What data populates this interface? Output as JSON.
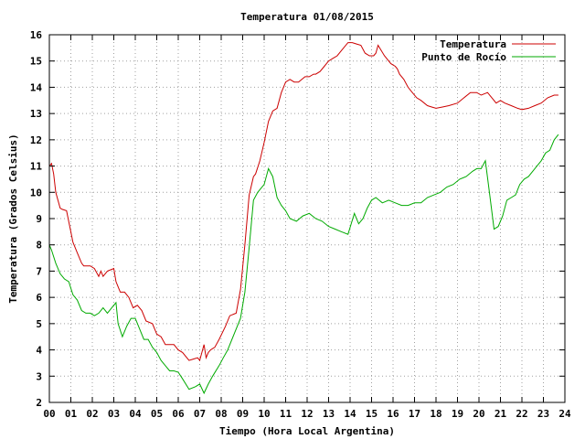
{
  "chart_data": {
    "type": "line",
    "title": "Temperatura 01/08/2015",
    "xlabel": "Tiempo (Hora Local Argentina)",
    "ylabel": "Temperatura (Grados Celsius)",
    "xlim": [
      0,
      24
    ],
    "ylim": [
      2,
      16
    ],
    "x_ticks": [
      0,
      1,
      2,
      3,
      4,
      5,
      6,
      7,
      8,
      9,
      10,
      11,
      12,
      13,
      14,
      15,
      16,
      17,
      18,
      19,
      20,
      21,
      22,
      23,
      24
    ],
    "x_tick_labels": [
      "00",
      "01",
      "02",
      "03",
      "04",
      "05",
      "06",
      "07",
      "08",
      "09",
      "10",
      "11",
      "12",
      "13",
      "14",
      "15",
      "16",
      "17",
      "18",
      "19",
      "20",
      "21",
      "22",
      "23",
      "24"
    ],
    "y_ticks": [
      2,
      3,
      4,
      5,
      6,
      7,
      8,
      9,
      10,
      11,
      12,
      13,
      14,
      15,
      16
    ],
    "y_tick_labels": [
      "2",
      "3",
      "4",
      "5",
      "6",
      "7",
      "8",
      "9",
      "10",
      "11",
      "12",
      "13",
      "14",
      "15",
      "16"
    ],
    "grid": true,
    "legend_position": "top-right",
    "series": [
      {
        "name": "Temperatura",
        "color": "#cc0000",
        "x": [
          0.0,
          0.1,
          0.2,
          0.3,
          0.5,
          0.6,
          0.8,
          1.0,
          1.1,
          1.3,
          1.5,
          1.6,
          1.9,
          2.1,
          2.3,
          2.4,
          2.5,
          2.7,
          3.0,
          3.1,
          3.3,
          3.5,
          3.7,
          3.9,
          4.1,
          4.3,
          4.5,
          4.8,
          5.0,
          5.2,
          5.4,
          5.6,
          5.8,
          6.0,
          6.2,
          6.5,
          6.7,
          6.9,
          7.0,
          7.2,
          7.3,
          7.4,
          7.5,
          7.7,
          7.9,
          8.2,
          8.4,
          8.7,
          8.9,
          9.1,
          9.3,
          9.5,
          9.6,
          9.8,
          10.0,
          10.2,
          10.4,
          10.6,
          10.8,
          11.0,
          11.2,
          11.4,
          11.6,
          11.9,
          12.1,
          12.3,
          12.4,
          12.6,
          12.8,
          13.0,
          13.2,
          13.4,
          13.6,
          13.9,
          14.1,
          14.3,
          14.5,
          14.7,
          14.9,
          15.1,
          15.2,
          15.3,
          15.6,
          15.9,
          16.1,
          16.2,
          16.3,
          16.5,
          16.7,
          16.9,
          17.1,
          17.3,
          17.6,
          17.8,
          18.0,
          18.3,
          18.6,
          19.0,
          19.3,
          19.6,
          19.9,
          20.1,
          20.4,
          20.6,
          20.8,
          21.0,
          21.2,
          21.5,
          21.8,
          22.0,
          22.3,
          22.6,
          22.9,
          23.2,
          23.5,
          23.7
        ],
        "values": [
          11.0,
          11.1,
          10.7,
          10.0,
          9.4,
          9.35,
          9.3,
          8.5,
          8.1,
          7.7,
          7.3,
          7.2,
          7.2,
          7.1,
          6.8,
          7.0,
          6.8,
          7.0,
          7.1,
          6.6,
          6.2,
          6.2,
          6.0,
          5.6,
          5.7,
          5.5,
          5.1,
          5.0,
          4.6,
          4.5,
          4.2,
          4.2,
          4.2,
          4.0,
          3.9,
          3.6,
          3.65,
          3.7,
          3.6,
          4.2,
          3.7,
          3.9,
          4.0,
          4.1,
          4.4,
          4.9,
          5.3,
          5.4,
          6.3,
          8.0,
          9.9,
          10.6,
          10.7,
          11.2,
          11.9,
          12.7,
          13.1,
          13.2,
          13.8,
          14.2,
          14.3,
          14.2,
          14.2,
          14.4,
          14.4,
          14.5,
          14.5,
          14.6,
          14.8,
          15.0,
          15.1,
          15.2,
          15.4,
          15.7,
          15.7,
          15.65,
          15.6,
          15.3,
          15.2,
          15.2,
          15.3,
          15.6,
          15.2,
          14.9,
          14.8,
          14.7,
          14.5,
          14.3,
          14.0,
          13.8,
          13.6,
          13.5,
          13.3,
          13.25,
          13.2,
          13.25,
          13.3,
          13.4,
          13.6,
          13.8,
          13.8,
          13.7,
          13.8,
          13.6,
          13.4,
          13.5,
          13.4,
          13.3,
          13.2,
          13.15,
          13.2,
          13.3,
          13.4,
          13.6,
          13.7,
          13.7
        ]
      },
      {
        "name": "Punto de Rocío",
        "color": "#00aa00",
        "x": [
          0.0,
          0.1,
          0.3,
          0.5,
          0.7,
          0.9,
          1.1,
          1.3,
          1.5,
          1.7,
          1.9,
          2.1,
          2.3,
          2.5,
          2.7,
          2.9,
          3.1,
          3.2,
          3.4,
          3.6,
          3.8,
          4.0,
          4.2,
          4.4,
          4.6,
          4.8,
          5.0,
          5.2,
          5.4,
          5.6,
          5.8,
          6.0,
          6.2,
          6.5,
          6.8,
          7.0,
          7.2,
          7.4,
          7.6,
          7.9,
          8.1,
          8.3,
          8.6,
          8.9,
          9.1,
          9.3,
          9.5,
          9.7,
          10.0,
          10.2,
          10.4,
          10.6,
          10.8,
          11.0,
          11.2,
          11.5,
          11.8,
          12.1,
          12.4,
          12.7,
          13.0,
          13.3,
          13.6,
          13.9,
          14.2,
          14.4,
          14.6,
          14.8,
          15.0,
          15.2,
          15.5,
          15.8,
          16.1,
          16.4,
          16.7,
          17.0,
          17.3,
          17.6,
          17.9,
          18.2,
          18.5,
          18.8,
          19.1,
          19.4,
          19.7,
          19.9,
          20.1,
          20.3,
          20.5,
          20.7,
          20.9,
          21.1,
          21.3,
          21.5,
          21.7,
          21.9,
          22.1,
          22.3,
          22.5,
          22.7,
          22.9,
          23.1,
          23.3,
          23.5,
          23.7
        ],
        "values": [
          8.0,
          7.8,
          7.3,
          6.9,
          6.7,
          6.6,
          6.1,
          5.9,
          5.5,
          5.4,
          5.4,
          5.3,
          5.4,
          5.6,
          5.4,
          5.6,
          5.8,
          5.0,
          4.5,
          4.9,
          5.2,
          5.2,
          4.8,
          4.4,
          4.4,
          4.1,
          3.9,
          3.6,
          3.4,
          3.2,
          3.2,
          3.15,
          2.9,
          2.5,
          2.6,
          2.7,
          2.35,
          2.7,
          3.0,
          3.4,
          3.7,
          4.0,
          4.6,
          5.2,
          6.2,
          7.9,
          9.7,
          10.0,
          10.3,
          10.9,
          10.6,
          9.8,
          9.5,
          9.3,
          9.0,
          8.9,
          9.1,
          9.2,
          9.0,
          8.9,
          8.7,
          8.6,
          8.5,
          8.4,
          9.2,
          8.8,
          9.0,
          9.4,
          9.7,
          9.8,
          9.6,
          9.7,
          9.6,
          9.5,
          9.5,
          9.6,
          9.6,
          9.8,
          9.9,
          10.0,
          10.2,
          10.3,
          10.5,
          10.6,
          10.8,
          10.9,
          10.9,
          11.2,
          9.9,
          8.6,
          8.7,
          9.1,
          9.7,
          9.8,
          9.9,
          10.3,
          10.5,
          10.6,
          10.8,
          11.0,
          11.2,
          11.5,
          11.6,
          12.0,
          12.2
        ]
      }
    ]
  }
}
